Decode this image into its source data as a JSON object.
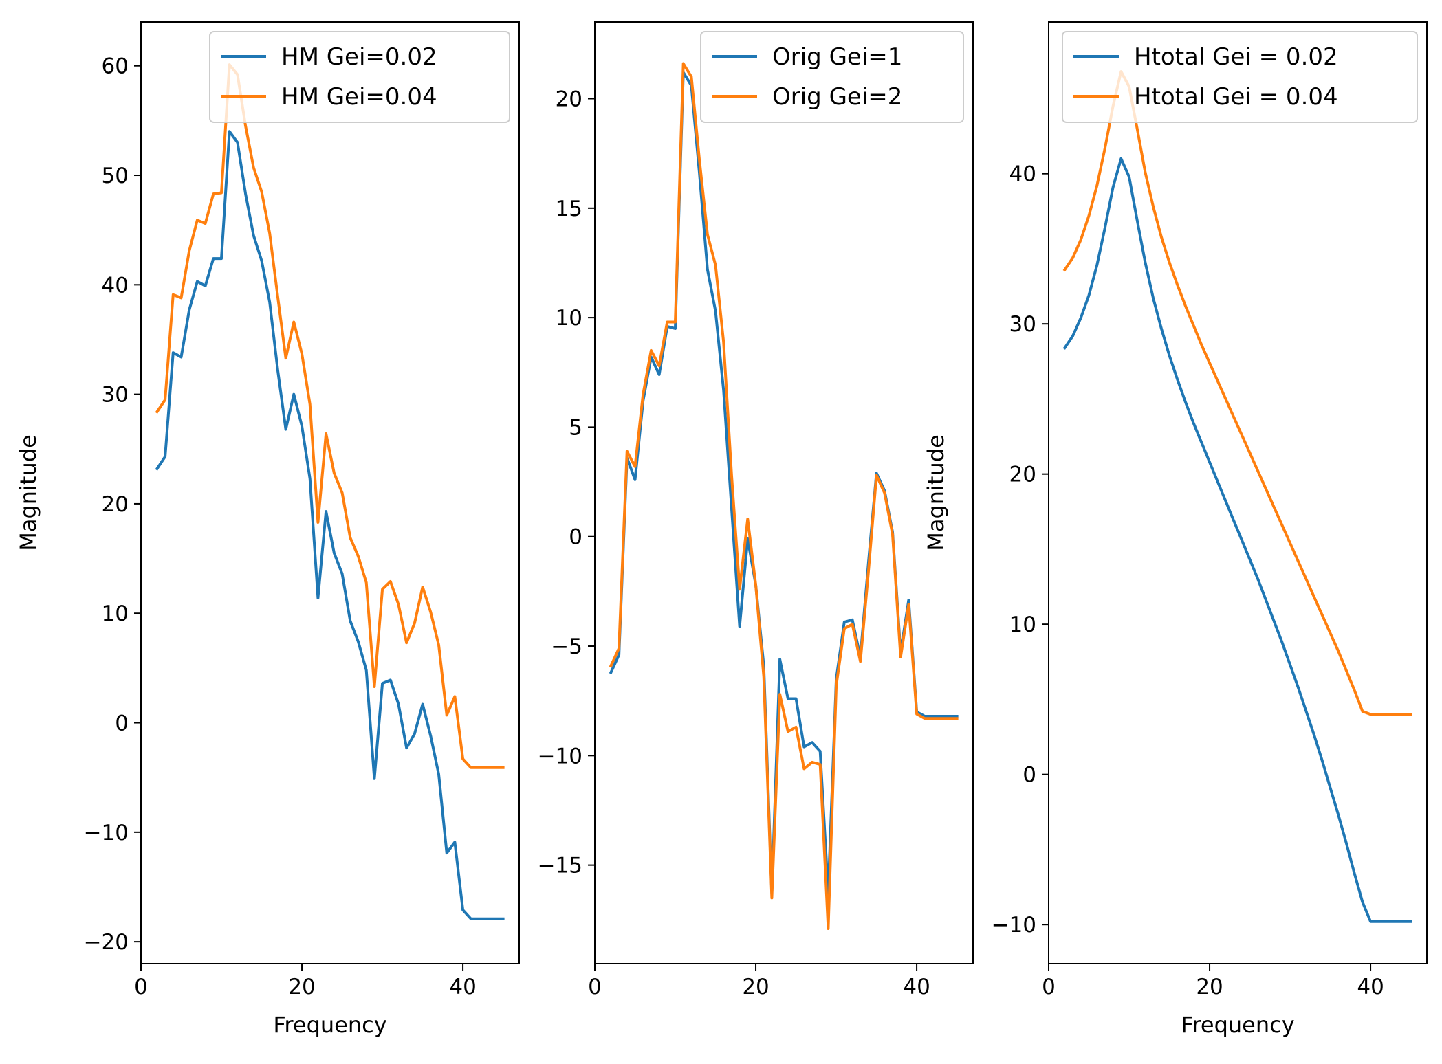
{
  "chart_data": [
    {
      "type": "line",
      "xlabel": "Frequency",
      "ylabel": "Magnitude",
      "xlim": [
        0,
        47
      ],
      "ylim": [
        -22,
        64
      ],
      "xticks": [
        0,
        20,
        40
      ],
      "yticks": [
        -20,
        -10,
        0,
        10,
        20,
        30,
        40,
        50,
        60
      ],
      "legend_position": "top-right",
      "x": [
        2,
        3,
        4,
        5,
        6,
        7,
        8,
        9,
        10,
        11,
        12,
        13,
        14,
        15,
        16,
        17,
        18,
        19,
        20,
        21,
        22,
        23,
        24,
        25,
        26,
        27,
        28,
        29,
        30,
        31,
        32,
        33,
        34,
        35,
        36,
        37,
        38,
        39,
        40,
        41,
        42,
        43,
        44,
        45
      ],
      "series": [
        {
          "name": "HM Gei=0.02",
          "color": "#1f77b4",
          "values": [
            23.2,
            24.3,
            33.8,
            33.4,
            37.7,
            40.3,
            39.9,
            42.4,
            42.4,
            54.0,
            53.0,
            48.3,
            44.5,
            42.2,
            38.4,
            32.2,
            26.8,
            30.0,
            27.1,
            22.3,
            11.4,
            19.3,
            15.5,
            13.6,
            9.3,
            7.4,
            4.8,
            -5.1,
            3.6,
            3.9,
            1.7,
            -2.3,
            -1.0,
            1.7,
            -1.2,
            -4.7,
            -11.9,
            -10.9,
            -17.1,
            -17.9,
            -17.9,
            -17.9,
            -17.9,
            -17.9
          ]
        },
        {
          "name": "HM Gei=0.04",
          "color": "#ff7f0e",
          "values": [
            28.4,
            29.5,
            39.1,
            38.8,
            43.1,
            45.9,
            45.6,
            48.3,
            48.4,
            60.1,
            59.2,
            54.5,
            50.7,
            48.5,
            44.7,
            38.9,
            33.3,
            36.6,
            33.7,
            29.1,
            18.3,
            26.4,
            22.8,
            21.0,
            16.9,
            15.2,
            12.8,
            3.3,
            12.2,
            12.9,
            10.8,
            7.3,
            9.1,
            12.4,
            10.1,
            7.1,
            0.7,
            2.4,
            -3.3,
            -4.1,
            -4.1,
            -4.1,
            -4.1,
            -4.1
          ]
        }
      ]
    },
    {
      "type": "line",
      "xlabel": "",
      "ylabel": "",
      "xlim": [
        0,
        47
      ],
      "ylim": [
        -19.5,
        23.5
      ],
      "xticks": [
        0,
        20,
        40
      ],
      "yticks": [
        -15,
        -10,
        -5,
        0,
        5,
        10,
        15,
        20
      ],
      "legend_position": "top-right",
      "x": [
        2,
        3,
        4,
        5,
        6,
        7,
        8,
        9,
        10,
        11,
        12,
        13,
        14,
        15,
        16,
        17,
        18,
        19,
        20,
        21,
        22,
        23,
        24,
        25,
        26,
        27,
        28,
        29,
        30,
        31,
        32,
        33,
        34,
        35,
        36,
        37,
        38,
        39,
        40,
        41,
        42,
        43,
        44,
        45
      ],
      "series": [
        {
          "name": "Orig Gei=1",
          "color": "#1f77b4",
          "values": [
            -6.2,
            -5.4,
            3.6,
            2.6,
            6.2,
            8.2,
            7.4,
            9.6,
            9.5,
            21.2,
            20.6,
            16.6,
            12.2,
            10.3,
            6.7,
            1.3,
            -4.1,
            -0.1,
            -2.2,
            -5.9,
            -16.3,
            -5.6,
            -7.4,
            -7.4,
            -9.6,
            -9.4,
            -9.8,
            -16.3,
            -6.5,
            -3.9,
            -3.8,
            -5.5,
            -1.2,
            2.9,
            2.1,
            0.2,
            -5.3,
            -2.9,
            -8.0,
            -8.2,
            -8.2,
            -8.2,
            -8.2,
            -8.2
          ]
        },
        {
          "name": "Orig Gei=2",
          "color": "#ff7f0e",
          "values": [
            -5.9,
            -5.1,
            3.9,
            3.2,
            6.5,
            8.5,
            7.8,
            9.8,
            9.8,
            21.6,
            21.0,
            17.2,
            13.8,
            12.4,
            8.9,
            2.8,
            -2.4,
            0.8,
            -2.2,
            -6.4,
            -16.5,
            -7.2,
            -8.9,
            -8.7,
            -10.6,
            -10.3,
            -10.4,
            -17.9,
            -6.8,
            -4.2,
            -4.0,
            -5.7,
            -1.6,
            2.8,
            2.0,
            0.1,
            -5.5,
            -3.1,
            -8.1,
            -8.3,
            -8.3,
            -8.3,
            -8.3,
            -8.3
          ]
        }
      ]
    },
    {
      "type": "line",
      "xlabel": "Frequency",
      "ylabel": "Magnitude",
      "xlim": [
        0,
        47
      ],
      "ylim": [
        -12.6,
        50.1
      ],
      "xticks": [
        0,
        20,
        40
      ],
      "yticks": [
        -10,
        0,
        10,
        20,
        30,
        40
      ],
      "legend_position": "top-right",
      "x": [
        2,
        3,
        4,
        5,
        6,
        7,
        8,
        9,
        10,
        11,
        12,
        13,
        14,
        15,
        16,
        17,
        18,
        19,
        20,
        21,
        22,
        23,
        24,
        25,
        26,
        27,
        28,
        29,
        30,
        31,
        32,
        33,
        34,
        35,
        36,
        37,
        38,
        39,
        40,
        41,
        42,
        43,
        44,
        45
      ],
      "series": [
        {
          "name": "Htotal Gei = 0.02",
          "color": "#1f77b4",
          "values": [
            28.4,
            29.2,
            30.4,
            31.9,
            33.9,
            36.4,
            39.1,
            41.0,
            39.8,
            36.9,
            34.1,
            31.7,
            29.7,
            27.9,
            26.3,
            24.8,
            23.4,
            22.1,
            20.8,
            19.5,
            18.2,
            16.9,
            15.6,
            14.3,
            13.0,
            11.6,
            10.2,
            8.8,
            7.3,
            5.8,
            4.2,
            2.6,
            0.9,
            -0.9,
            -2.7,
            -4.6,
            -6.6,
            -8.5,
            -9.8,
            -9.8,
            -9.8,
            -9.8,
            -9.8,
            -9.8
          ]
        },
        {
          "name": "Htotal Gei = 0.04",
          "color": "#ff7f0e",
          "values": [
            33.6,
            34.4,
            35.6,
            37.2,
            39.2,
            41.7,
            44.5,
            46.8,
            45.8,
            43.0,
            40.1,
            37.8,
            35.8,
            34.1,
            32.6,
            31.2,
            29.9,
            28.6,
            27.4,
            26.2,
            25.0,
            23.8,
            22.6,
            21.4,
            20.2,
            19.0,
            17.8,
            16.6,
            15.4,
            14.2,
            13.0,
            11.8,
            10.6,
            9.4,
            8.2,
            6.9,
            5.6,
            4.2,
            4.0,
            4.0,
            4.0,
            4.0,
            4.0,
            4.0
          ]
        }
      ]
    }
  ]
}
